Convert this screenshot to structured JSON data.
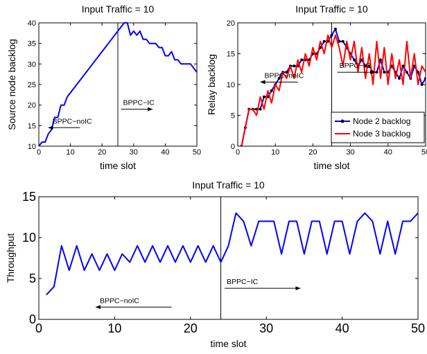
{
  "chart_data": [
    {
      "type": "line",
      "title": "Input Traffic = 10",
      "xlabel": "time slot",
      "ylabel": "Source node backlog",
      "xlim": [
        0,
        50
      ],
      "ylim": [
        10,
        40
      ],
      "xticks": [
        "0",
        "10",
        "20",
        "30",
        "40",
        "50"
      ],
      "yticks": [
        "10",
        "15",
        "20",
        "25",
        "30",
        "35",
        "40"
      ],
      "divider_x": 25,
      "annotations": [
        {
          "text": "BPPC−IC",
          "direction": "right",
          "x": 26,
          "y": 19
        },
        {
          "text": "BPPC−noIC",
          "direction": "left",
          "x": 13,
          "y": 14.5
        }
      ],
      "series": [
        {
          "color": "#0000ff",
          "x": [
            0,
            1,
            2,
            3,
            4,
            5,
            6,
            7,
            8,
            9,
            10,
            11,
            12,
            13,
            14,
            15,
            16,
            17,
            18,
            19,
            20,
            21,
            22,
            23,
            24,
            25,
            26,
            27,
            28,
            29,
            30,
            31,
            32,
            33,
            34,
            35,
            36,
            37,
            38,
            39,
            40,
            41,
            42,
            43,
            44,
            45,
            46,
            47,
            48,
            49,
            50
          ],
          "values": [
            10,
            11,
            11,
            13,
            14,
            17,
            17,
            20,
            20,
            22,
            23,
            24,
            25,
            26,
            27,
            28,
            29,
            30,
            31,
            32,
            33,
            34,
            35,
            36,
            37,
            38,
            39,
            40,
            40,
            37,
            38,
            37,
            38,
            36,
            36,
            35,
            35,
            35,
            34,
            34,
            32,
            32,
            33,
            31,
            31,
            30,
            30,
            30,
            30,
            29,
            28
          ]
        }
      ]
    },
    {
      "type": "line",
      "title": "Input Traffic = 10",
      "xlabel": "time slot",
      "ylabel": "Relay backlog",
      "xlim": [
        0,
        50
      ],
      "ylim": [
        0,
        20
      ],
      "xticks": [
        "0",
        "10",
        "20",
        "30",
        "40",
        "50"
      ],
      "yticks": [
        "0",
        "5",
        "10",
        "15",
        "20"
      ],
      "divider_x": 25,
      "legend_position": "bottom-right",
      "annotations": [
        {
          "text": "BPPC−IC",
          "direction": "right",
          "x": 26.5,
          "y": 12
        },
        {
          "text": "BPPC−noIC",
          "direction": "left",
          "x": 16,
          "y": 10.4
        }
      ],
      "series": [
        {
          "name": "Node 2 backlog",
          "color": "#0000ff",
          "marker": "dot",
          "x": [
            1,
            2,
            3,
            4,
            5,
            6,
            7,
            8,
            9,
            10,
            11,
            12,
            13,
            14,
            15,
            16,
            17,
            18,
            19,
            20,
            21,
            22,
            23,
            24,
            25,
            26,
            27,
            28,
            29,
            30,
            31,
            32,
            33,
            34,
            35,
            36,
            37,
            38,
            39,
            40,
            41,
            42,
            43,
            44,
            45,
            46,
            47,
            48,
            49,
            50
          ],
          "values": [
            0,
            3,
            6,
            6,
            6,
            6,
            8,
            8,
            9,
            10,
            11,
            12,
            12,
            13,
            13,
            13,
            14,
            14,
            14,
            15,
            15,
            16,
            17,
            17,
            18,
            19,
            17,
            17,
            16,
            15,
            14,
            13,
            14,
            13,
            13,
            12,
            12,
            14,
            12,
            12,
            13,
            12,
            11,
            13,
            12,
            11,
            13,
            12,
            10,
            11
          ]
        },
        {
          "name": "Node 3 backlog",
          "color": "#ff0000",
          "x": [
            1,
            2,
            3,
            4,
            5,
            6,
            7,
            8,
            9,
            10,
            11,
            12,
            13,
            14,
            15,
            16,
            17,
            18,
            19,
            20,
            21,
            22,
            23,
            24,
            25,
            26,
            27,
            28,
            29,
            30,
            31,
            32,
            33,
            34,
            35,
            36,
            37,
            38,
            39,
            40,
            41,
            42,
            43,
            44,
            45,
            46,
            47,
            48,
            49,
            50
          ],
          "values": [
            0,
            3,
            6,
            6,
            5,
            8,
            6,
            9,
            7,
            10,
            9,
            12,
            11,
            13,
            11,
            14,
            12,
            15,
            13,
            16,
            14,
            17,
            15,
            18,
            16,
            18,
            16,
            13,
            17,
            14,
            17,
            12,
            16,
            11,
            15,
            10,
            17,
            11,
            16,
            10,
            15,
            11,
            14,
            10,
            17,
            11,
            15,
            10,
            13,
            12
          ]
        }
      ]
    },
    {
      "type": "line",
      "title": "Input Traffic = 10",
      "xlabel": "time slot",
      "ylabel": "Throughput",
      "xlim": [
        0,
        50
      ],
      "ylim": [
        0,
        15
      ],
      "xticks": [
        "0",
        "10",
        "20",
        "30",
        "40",
        "50"
      ],
      "yticks": [
        "0",
        "5",
        "10",
        "15"
      ],
      "divider_x": 24,
      "annotations": [
        {
          "text": "BPPC−IC",
          "direction": "right",
          "x": 24.5,
          "y": 3.8
        },
        {
          "text": "BPPC−noIC",
          "direction": "left",
          "x": 17.5,
          "y": 1.5
        }
      ],
      "series": [
        {
          "color": "#0000ff",
          "x": [
            1,
            2,
            3,
            4,
            5,
            6,
            7,
            8,
            9,
            10,
            11,
            12,
            13,
            14,
            15,
            16,
            17,
            18,
            19,
            20,
            21,
            22,
            23,
            24,
            25,
            26,
            27,
            28,
            29,
            30,
            31,
            32,
            33,
            34,
            35,
            36,
            37,
            38,
            39,
            40,
            41,
            42,
            43,
            44,
            45,
            46,
            47,
            48,
            49,
            50
          ],
          "values": [
            3,
            4,
            9,
            6,
            9,
            6,
            8,
            6,
            8,
            6,
            8,
            7,
            9,
            7,
            9,
            7,
            9,
            7,
            9,
            7,
            9,
            7,
            9,
            7,
            9,
            13,
            12,
            9,
            12,
            12,
            12,
            8,
            12,
            12,
            8,
            12,
            12,
            8,
            12,
            12,
            8,
            12,
            13,
            12,
            8,
            12,
            8,
            12,
            12,
            13
          ]
        }
      ]
    }
  ]
}
